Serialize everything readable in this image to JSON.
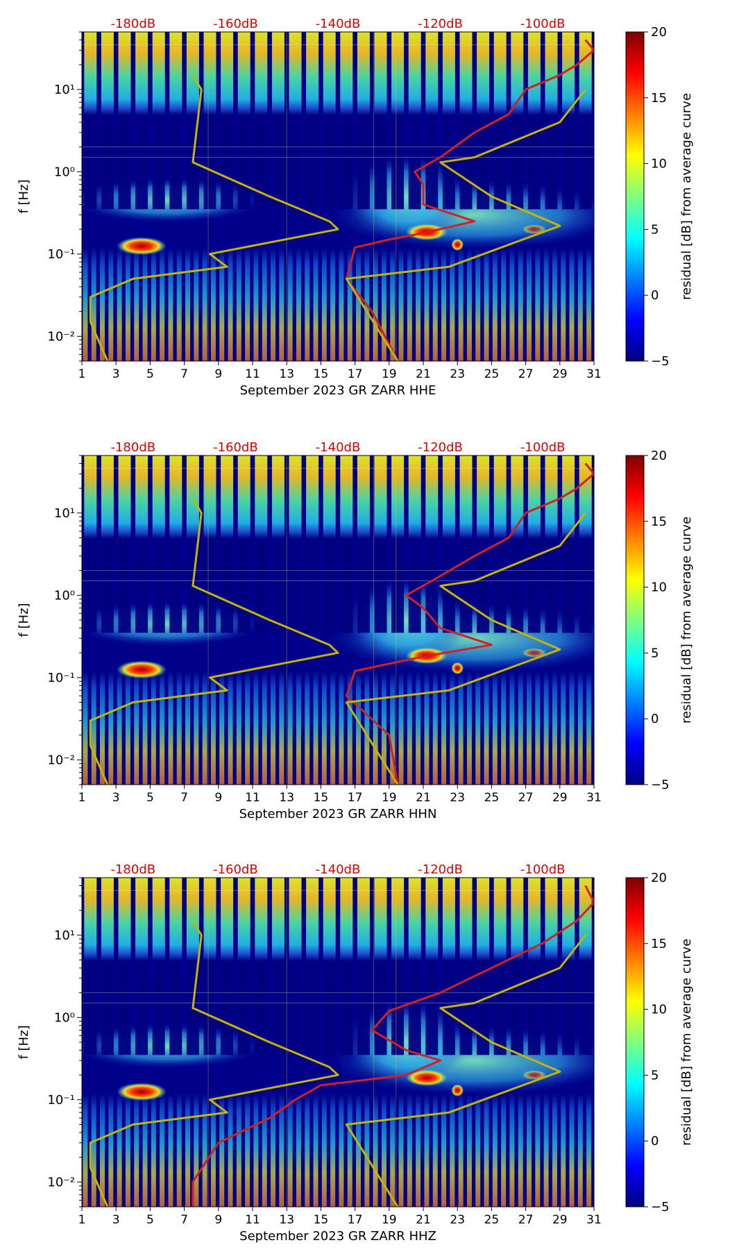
{
  "chart_data": [
    {
      "type": "heatmap",
      "title": "",
      "xlabel": "September 2023 GR ZARR  HHE",
      "ylabel": "f [Hz]",
      "x_ticks": [
        "1",
        "3",
        "5",
        "7",
        "9",
        "11",
        "13",
        "15",
        "17",
        "19",
        "21",
        "23",
        "25",
        "27",
        "29",
        "31"
      ],
      "xlim": [
        1,
        31
      ],
      "y_scale": "log",
      "ylim": [
        0.005,
        50
      ],
      "y_ticks": [
        0.01,
        0.1,
        1,
        10
      ],
      "y_tick_labels": [
        "10⁻²",
        "10⁻¹",
        "10⁰",
        "10¹"
      ],
      "top_ticks": [
        "-180dB",
        "-160dB",
        "-140dB",
        "-120dB",
        "-100dB"
      ],
      "top_tick_x": [
        4,
        10,
        16,
        22,
        28
      ],
      "colorbar": {
        "label": "residual [dB] from average curve",
        "min": -5,
        "max": 20,
        "ticks": [
          "−5",
          "0",
          "5",
          "10",
          "15",
          "20"
        ],
        "colormap": "jet"
      },
      "series": [
        {
          "color": "#d62020",
          "points": [
            [
              30.5,
              40
            ],
            [
              31,
              30
            ],
            [
              30,
              20
            ],
            [
              29,
              15
            ],
            [
              27,
              10
            ],
            [
              26,
              5
            ],
            [
              24,
              3
            ],
            [
              22,
              1.5
            ],
            [
              20.5,
              1
            ],
            [
              21,
              0.7
            ],
            [
              21,
              0.4
            ],
            [
              24,
              0.25
            ],
            [
              21,
              0.18
            ],
            [
              19,
              0.15
            ],
            [
              17,
              0.12
            ],
            [
              16.5,
              0.05
            ],
            [
              18,
              0.02
            ],
            [
              19.5,
              0.005
            ]
          ]
        },
        {
          "color": "#c8b400",
          "points": [
            [
              7.5,
              15
            ],
            [
              8,
              10
            ],
            [
              7.5,
              1.3
            ],
            [
              12,
              0.5
            ],
            [
              15.5,
              0.25
            ],
            [
              16,
              0.2
            ],
            [
              8.5,
              0.1
            ],
            [
              9.5,
              0.07
            ],
            [
              4,
              0.05
            ],
            [
              1.5,
              0.03
            ],
            [
              1.5,
              0.015
            ],
            [
              2.5,
              0.005
            ]
          ]
        },
        {
          "color": "#c8b400",
          "points": [
            [
              30.5,
              10
            ],
            [
              29,
              4
            ],
            [
              24,
              1.5
            ],
            [
              22,
              1.3
            ],
            [
              25,
              0.5
            ],
            [
              29,
              0.22
            ],
            [
              22.5,
              0.07
            ],
            [
              16.5,
              0.05
            ],
            [
              19.5,
              0.005
            ]
          ]
        }
      ]
    },
    {
      "type": "heatmap",
      "title": "",
      "xlabel": "September 2023 GR ZARR  HHN",
      "ylabel": "f [Hz]",
      "x_ticks": [
        "1",
        "3",
        "5",
        "7",
        "9",
        "11",
        "13",
        "15",
        "17",
        "19",
        "21",
        "23",
        "25",
        "27",
        "29",
        "31"
      ],
      "xlim": [
        1,
        31
      ],
      "y_scale": "log",
      "ylim": [
        0.005,
        50
      ],
      "y_ticks": [
        0.01,
        0.1,
        1,
        10
      ],
      "y_tick_labels": [
        "10⁻²",
        "10⁻¹",
        "10⁰",
        "10¹"
      ],
      "top_ticks": [
        "-180dB",
        "-160dB",
        "-140dB",
        "-120dB",
        "-100dB"
      ],
      "top_tick_x": [
        4,
        10,
        16,
        22,
        28
      ],
      "colorbar": {
        "label": "residual [dB] from average curve",
        "min": -5,
        "max": 20,
        "ticks": [
          "−5",
          "0",
          "5",
          "10",
          "15",
          "20"
        ],
        "colormap": "jet"
      },
      "series": [
        {
          "color": "#d62020",
          "points": [
            [
              30.5,
              40
            ],
            [
              31,
              30
            ],
            [
              30,
              20
            ],
            [
              29,
              15
            ],
            [
              27,
              10
            ],
            [
              26,
              5
            ],
            [
              24,
              3
            ],
            [
              21.5,
              1.5
            ],
            [
              20,
              1
            ],
            [
              21,
              0.7
            ],
            [
              22,
              0.4
            ],
            [
              25,
              0.25
            ],
            [
              21,
              0.18
            ],
            [
              18.5,
              0.14
            ],
            [
              17,
              0.12
            ],
            [
              16.5,
              0.06
            ],
            [
              19,
              0.02
            ],
            [
              19.5,
              0.005
            ]
          ]
        },
        {
          "color": "#c8b400",
          "points": [
            [
              7.5,
              15
            ],
            [
              8,
              10
            ],
            [
              7.5,
              1.3
            ],
            [
              12,
              0.5
            ],
            [
              15.5,
              0.25
            ],
            [
              16,
              0.2
            ],
            [
              8.5,
              0.1
            ],
            [
              9.5,
              0.07
            ],
            [
              4,
              0.05
            ],
            [
              1.5,
              0.03
            ],
            [
              1.5,
              0.015
            ],
            [
              2.5,
              0.005
            ]
          ]
        },
        {
          "color": "#c8b400",
          "points": [
            [
              30.5,
              10
            ],
            [
              29,
              4
            ],
            [
              24,
              1.5
            ],
            [
              22,
              1.3
            ],
            [
              25,
              0.5
            ],
            [
              29,
              0.22
            ],
            [
              22.5,
              0.07
            ],
            [
              16.5,
              0.05
            ],
            [
              19.5,
              0.005
            ]
          ]
        }
      ]
    },
    {
      "type": "heatmap",
      "title": "",
      "xlabel": "September 2023 GR ZARR  HHZ",
      "ylabel": "f [Hz]",
      "x_ticks": [
        "1",
        "3",
        "5",
        "7",
        "9",
        "11",
        "13",
        "15",
        "17",
        "19",
        "21",
        "23",
        "25",
        "27",
        "29",
        "31"
      ],
      "xlim": [
        1,
        31
      ],
      "y_scale": "log",
      "ylim": [
        0.005,
        50
      ],
      "y_ticks": [
        0.01,
        0.1,
        1,
        10
      ],
      "y_tick_labels": [
        "10⁻²",
        "10⁻¹",
        "10⁰",
        "10¹"
      ],
      "top_ticks": [
        "-180dB",
        "-160dB",
        "-140dB",
        "-120dB",
        "-100dB"
      ],
      "top_tick_x": [
        4,
        10,
        16,
        22,
        28
      ],
      "colorbar": {
        "label": "residual [dB] from average curve",
        "min": -5,
        "max": 20,
        "ticks": [
          "−5",
          "0",
          "5",
          "10",
          "15",
          "20"
        ],
        "colormap": "jet"
      },
      "series": [
        {
          "color": "#d62020",
          "points": [
            [
              30.5,
              40
            ],
            [
              31,
              25
            ],
            [
              30,
              15
            ],
            [
              28,
              8
            ],
            [
              25,
              4
            ],
            [
              22,
              2
            ],
            [
              19,
              1.2
            ],
            [
              18,
              0.7
            ],
            [
              20,
              0.4
            ],
            [
              22,
              0.3
            ],
            [
              20,
              0.2
            ],
            [
              15,
              0.15
            ],
            [
              13.5,
              0.1
            ],
            [
              12,
              0.06
            ],
            [
              9,
              0.03
            ],
            [
              7.5,
              0.01
            ],
            [
              7.5,
              0.005
            ]
          ]
        },
        {
          "color": "#c8b400",
          "points": [
            [
              7.5,
              15
            ],
            [
              8,
              10
            ],
            [
              7.5,
              1.3
            ],
            [
              12,
              0.5
            ],
            [
              15.5,
              0.25
            ],
            [
              16,
              0.2
            ],
            [
              8.5,
              0.1
            ],
            [
              9.5,
              0.07
            ],
            [
              4,
              0.05
            ],
            [
              1.5,
              0.03
            ],
            [
              1.5,
              0.015
            ],
            [
              2.5,
              0.005
            ]
          ]
        },
        {
          "color": "#c8b400",
          "points": [
            [
              30.5,
              10
            ],
            [
              29,
              4
            ],
            [
              24,
              1.5
            ],
            [
              22,
              1.3
            ],
            [
              25,
              0.5
            ],
            [
              29,
              0.22
            ],
            [
              22.5,
              0.07
            ],
            [
              16.5,
              0.05
            ],
            [
              19.5,
              0.005
            ]
          ]
        }
      ]
    }
  ]
}
